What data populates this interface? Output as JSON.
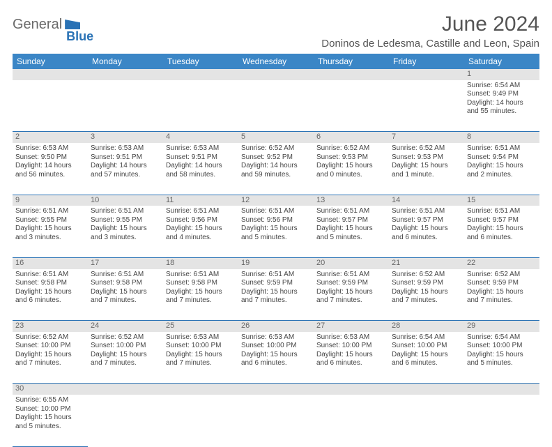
{
  "logo": {
    "word1": "General",
    "word2": "Blue"
  },
  "title": "June 2024",
  "location": "Doninos de Ledesma, Castille and Leon, Spain",
  "colors": {
    "header_bg": "#3b86c6",
    "border": "#2a72b5",
    "daynum_bg": "#e4e4e4",
    "text": "#444444",
    "title_text": "#555555"
  },
  "day_headers": [
    "Sunday",
    "Monday",
    "Tuesday",
    "Wednesday",
    "Thursday",
    "Friday",
    "Saturday"
  ],
  "weeks": [
    [
      null,
      null,
      null,
      null,
      null,
      null,
      {
        "n": "1",
        "sr": "Sunrise: 6:54 AM",
        "ss": "Sunset: 9:49 PM",
        "dl1": "Daylight: 14 hours",
        "dl2": "and 55 minutes."
      }
    ],
    [
      {
        "n": "2",
        "sr": "Sunrise: 6:53 AM",
        "ss": "Sunset: 9:50 PM",
        "dl1": "Daylight: 14 hours",
        "dl2": "and 56 minutes."
      },
      {
        "n": "3",
        "sr": "Sunrise: 6:53 AM",
        "ss": "Sunset: 9:51 PM",
        "dl1": "Daylight: 14 hours",
        "dl2": "and 57 minutes."
      },
      {
        "n": "4",
        "sr": "Sunrise: 6:53 AM",
        "ss": "Sunset: 9:51 PM",
        "dl1": "Daylight: 14 hours",
        "dl2": "and 58 minutes."
      },
      {
        "n": "5",
        "sr": "Sunrise: 6:52 AM",
        "ss": "Sunset: 9:52 PM",
        "dl1": "Daylight: 14 hours",
        "dl2": "and 59 minutes."
      },
      {
        "n": "6",
        "sr": "Sunrise: 6:52 AM",
        "ss": "Sunset: 9:53 PM",
        "dl1": "Daylight: 15 hours",
        "dl2": "and 0 minutes."
      },
      {
        "n": "7",
        "sr": "Sunrise: 6:52 AM",
        "ss": "Sunset: 9:53 PM",
        "dl1": "Daylight: 15 hours",
        "dl2": "and 1 minute."
      },
      {
        "n": "8",
        "sr": "Sunrise: 6:51 AM",
        "ss": "Sunset: 9:54 PM",
        "dl1": "Daylight: 15 hours",
        "dl2": "and 2 minutes."
      }
    ],
    [
      {
        "n": "9",
        "sr": "Sunrise: 6:51 AM",
        "ss": "Sunset: 9:55 PM",
        "dl1": "Daylight: 15 hours",
        "dl2": "and 3 minutes."
      },
      {
        "n": "10",
        "sr": "Sunrise: 6:51 AM",
        "ss": "Sunset: 9:55 PM",
        "dl1": "Daylight: 15 hours",
        "dl2": "and 3 minutes."
      },
      {
        "n": "11",
        "sr": "Sunrise: 6:51 AM",
        "ss": "Sunset: 9:56 PM",
        "dl1": "Daylight: 15 hours",
        "dl2": "and 4 minutes."
      },
      {
        "n": "12",
        "sr": "Sunrise: 6:51 AM",
        "ss": "Sunset: 9:56 PM",
        "dl1": "Daylight: 15 hours",
        "dl2": "and 5 minutes."
      },
      {
        "n": "13",
        "sr": "Sunrise: 6:51 AM",
        "ss": "Sunset: 9:57 PM",
        "dl1": "Daylight: 15 hours",
        "dl2": "and 5 minutes."
      },
      {
        "n": "14",
        "sr": "Sunrise: 6:51 AM",
        "ss": "Sunset: 9:57 PM",
        "dl1": "Daylight: 15 hours",
        "dl2": "and 6 minutes."
      },
      {
        "n": "15",
        "sr": "Sunrise: 6:51 AM",
        "ss": "Sunset: 9:57 PM",
        "dl1": "Daylight: 15 hours",
        "dl2": "and 6 minutes."
      }
    ],
    [
      {
        "n": "16",
        "sr": "Sunrise: 6:51 AM",
        "ss": "Sunset: 9:58 PM",
        "dl1": "Daylight: 15 hours",
        "dl2": "and 6 minutes."
      },
      {
        "n": "17",
        "sr": "Sunrise: 6:51 AM",
        "ss": "Sunset: 9:58 PM",
        "dl1": "Daylight: 15 hours",
        "dl2": "and 7 minutes."
      },
      {
        "n": "18",
        "sr": "Sunrise: 6:51 AM",
        "ss": "Sunset: 9:58 PM",
        "dl1": "Daylight: 15 hours",
        "dl2": "and 7 minutes."
      },
      {
        "n": "19",
        "sr": "Sunrise: 6:51 AM",
        "ss": "Sunset: 9:59 PM",
        "dl1": "Daylight: 15 hours",
        "dl2": "and 7 minutes."
      },
      {
        "n": "20",
        "sr": "Sunrise: 6:51 AM",
        "ss": "Sunset: 9:59 PM",
        "dl1": "Daylight: 15 hours",
        "dl2": "and 7 minutes."
      },
      {
        "n": "21",
        "sr": "Sunrise: 6:52 AM",
        "ss": "Sunset: 9:59 PM",
        "dl1": "Daylight: 15 hours",
        "dl2": "and 7 minutes."
      },
      {
        "n": "22",
        "sr": "Sunrise: 6:52 AM",
        "ss": "Sunset: 9:59 PM",
        "dl1": "Daylight: 15 hours",
        "dl2": "and 7 minutes."
      }
    ],
    [
      {
        "n": "23",
        "sr": "Sunrise: 6:52 AM",
        "ss": "Sunset: 10:00 PM",
        "dl1": "Daylight: 15 hours",
        "dl2": "and 7 minutes."
      },
      {
        "n": "24",
        "sr": "Sunrise: 6:52 AM",
        "ss": "Sunset: 10:00 PM",
        "dl1": "Daylight: 15 hours",
        "dl2": "and 7 minutes."
      },
      {
        "n": "25",
        "sr": "Sunrise: 6:53 AM",
        "ss": "Sunset: 10:00 PM",
        "dl1": "Daylight: 15 hours",
        "dl2": "and 7 minutes."
      },
      {
        "n": "26",
        "sr": "Sunrise: 6:53 AM",
        "ss": "Sunset: 10:00 PM",
        "dl1": "Daylight: 15 hours",
        "dl2": "and 6 minutes."
      },
      {
        "n": "27",
        "sr": "Sunrise: 6:53 AM",
        "ss": "Sunset: 10:00 PM",
        "dl1": "Daylight: 15 hours",
        "dl2": "and 6 minutes."
      },
      {
        "n": "28",
        "sr": "Sunrise: 6:54 AM",
        "ss": "Sunset: 10:00 PM",
        "dl1": "Daylight: 15 hours",
        "dl2": "and 6 minutes."
      },
      {
        "n": "29",
        "sr": "Sunrise: 6:54 AM",
        "ss": "Sunset: 10:00 PM",
        "dl1": "Daylight: 15 hours",
        "dl2": "and 5 minutes."
      }
    ],
    [
      {
        "n": "30",
        "sr": "Sunrise: 6:55 AM",
        "ss": "Sunset: 10:00 PM",
        "dl1": "Daylight: 15 hours",
        "dl2": "and 5 minutes."
      },
      null,
      null,
      null,
      null,
      null,
      null
    ]
  ]
}
